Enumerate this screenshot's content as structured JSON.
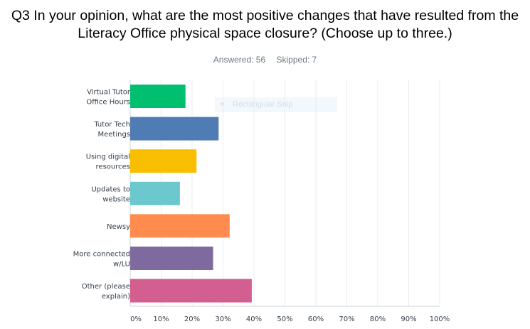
{
  "chart_data": {
    "type": "bar",
    "orientation": "horizontal",
    "title": "Q3 In your opinion, what are the most positive changes that have resulted from the Literacy Office physical space closure? (Choose up to three.)",
    "answered_label": "Answered: 56",
    "skipped_label": "Skipped: 7",
    "categories": [
      [
        "Virtual Tutor",
        "Office Hours"
      ],
      [
        "Tutor Tech",
        "Meetings"
      ],
      [
        "Using digital",
        "resources"
      ],
      [
        "Updates to",
        "website"
      ],
      [
        "Newsy"
      ],
      [
        "More connected",
        "w/LU"
      ],
      [
        "Other (please",
        "explain)"
      ]
    ],
    "values": [
      17.86,
      28.57,
      21.43,
      16.07,
      32.14,
      26.79,
      39.29
    ],
    "colors": [
      "#00bf6f",
      "#507cb6",
      "#f9be00",
      "#6bc8cd",
      "#ff8b4f",
      "#7f6aa0",
      "#d25f90"
    ],
    "xlim": [
      0,
      100
    ],
    "xticks": [
      "0%",
      "10%",
      "20%",
      "30%",
      "40%",
      "50%",
      "60%",
      "70%",
      "80%",
      "90%",
      "100%"
    ],
    "grid": true,
    "xlabel": "",
    "ylabel": ""
  },
  "overlay": {
    "label": "Rectangular Snip"
  }
}
